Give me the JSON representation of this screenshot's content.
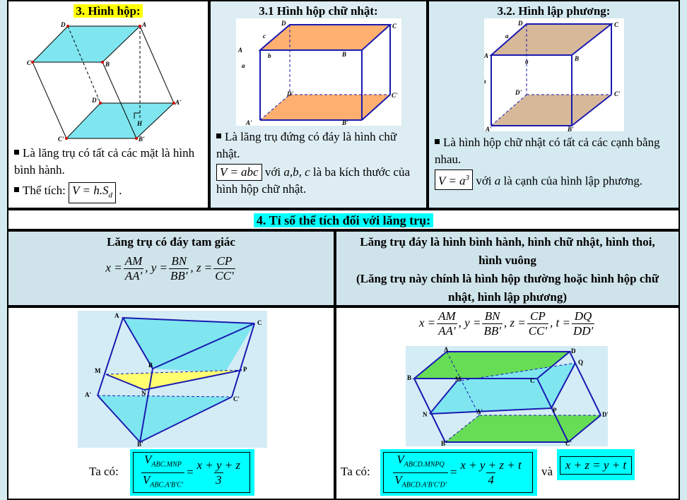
{
  "hinh_hop": {
    "title": "3. Hình hộp:",
    "b1": "Là lăng trụ có tất cả các mặt là hình bình hành.",
    "b2": "Thể tích:",
    "formula": "V = h.S",
    "formula_sub": "d",
    "labels": {
      "D": "D",
      "A": "A",
      "C": "C",
      "B": "B",
      "Dp": "D'",
      "Ap": "A'",
      "Cp": "C'",
      "Bp": "B'",
      "H": "H"
    }
  },
  "hinh_hop_chu_nhat": {
    "title": "3.1 Hình hộp chữ nhật:",
    "b1": "Là lăng trụ đứng có đáy là hình chữ nhật.",
    "formula": "V = abc",
    "rest_1": "với",
    "vars": "a,b, c",
    "rest_2": "là ba kích thước của hình hộp chữ nhật.",
    "labels": {
      "D": "D",
      "A": "A",
      "C": "C",
      "B": "B",
      "Dp": "D'",
      "Ap": "A'",
      "Cp": "C'",
      "Bp": "B'",
      "a": "a",
      "b": "b",
      "c": "c"
    }
  },
  "hinh_lap_phuong": {
    "title": "3.2. Hình lập phương:",
    "b1": "Là hình hộp chữ nhật có tất cả các cạnh bằng nhau.",
    "formula_base": "V = a",
    "formula_exp": "3",
    "rest_1": "với",
    "var": "a",
    "rest_2": "là cạnh của hình lập phương.",
    "labels": {
      "D": "D",
      "A": "A",
      "C": "C",
      "B": "B",
      "Dp": "D'",
      "Ap": "A'",
      "Cp": "C'",
      "Bp": "B'",
      "a1": "a",
      "a2": "a",
      "a3": "a"
    }
  },
  "section4": {
    "title": "4. Tỉ số thể tích đối với lăng trụ:",
    "left_head": "Lăng trụ có đáy tam giác",
    "right_head_1": "Lăng trụ đáy là hình bình hành, hình chữ nhật, hình thoi, hình vuông",
    "right_head_2": "(Lăng trụ này chính là hình hộp thường hoặc hình hộp chữ nhật, hình lập phương)",
    "ratios_left": {
      "x_n": "AM",
      "x_d": "AA'",
      "y_n": "BN",
      "y_d": "BB'",
      "z_n": "CP",
      "z_d": "CC'"
    },
    "ratios_right": {
      "x_n": "AM",
      "x_d": "AA'",
      "y_n": "BN",
      "y_d": "BB'",
      "z_n": "CP",
      "z_d": "CC'",
      "t_n": "DQ",
      "t_d": "DD'"
    },
    "ta_co": "Ta có:",
    "left_formula": {
      "num": "V",
      "num_sub": "ABC.MNP",
      "den": "V",
      "den_sub": "ABC.A'B'C'",
      "rhs_n": "x + y + z",
      "rhs_d": "3"
    },
    "right_formula": {
      "num": "V",
      "num_sub": "ABCD.MNPQ",
      "den": "V",
      "den_sub": "ABCD.A'B'C'D'",
      "rhs_n": "x + y + z + t",
      "rhs_d": "4"
    },
    "va": "và",
    "right_extra": "x + z = y + t",
    "tri_labels": {
      "A": "A",
      "B": "B",
      "C": "C",
      "M": "M",
      "N": "N",
      "P": "P",
      "Ap": "A'",
      "Bp": "B'",
      "Cp": "C'"
    },
    "quad_labels": {
      "A": "A",
      "B": "B",
      "C": "C",
      "D": "D",
      "M": "M",
      "N": "N",
      "P": "P",
      "Q": "Q",
      "Ap": "A'",
      "Bp": "B'",
      "Cp": "C'",
      "Dp": "D'"
    }
  },
  "colors": {
    "cyan": "#00ffff",
    "yellow": "#ffff00",
    "orange": "#ffb070",
    "tan": "#d7b99a",
    "green": "#66dd55",
    "lightblue": "#7fe6f0"
  }
}
